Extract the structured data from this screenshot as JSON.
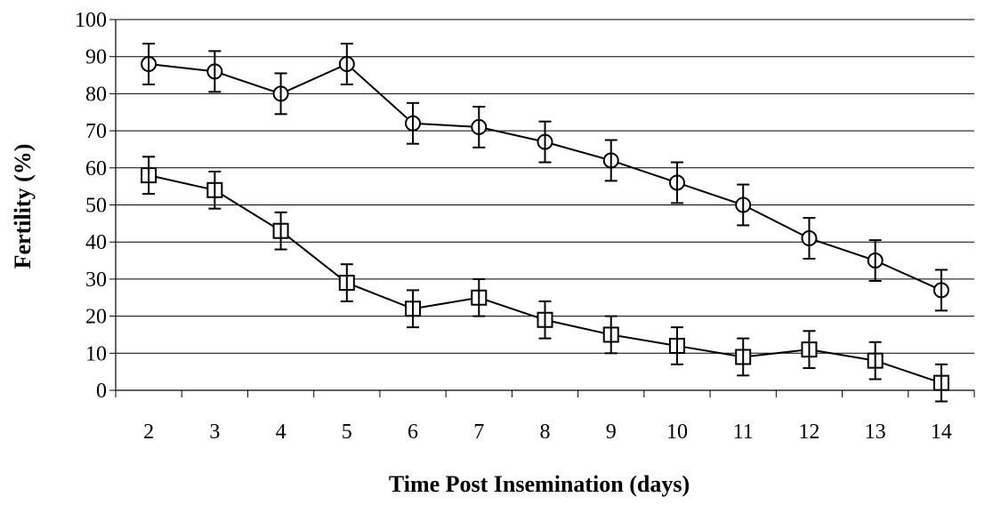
{
  "chart_data": {
    "type": "line",
    "title": "",
    "xlabel": "Time Post Insemination (days)",
    "ylabel": "Fertility (%)",
    "ylim": [
      0,
      100
    ],
    "y_ticks": [
      0,
      10,
      20,
      30,
      40,
      50,
      60,
      70,
      80,
      90,
      100
    ],
    "categories": [
      "2",
      "3",
      "4",
      "5",
      "6",
      "7",
      "8",
      "9",
      "10",
      "11",
      "12",
      "13",
      "14"
    ],
    "grid": "horizontal",
    "legend": "none",
    "series": [
      {
        "marker": "circle",
        "values": [
          88,
          86,
          80,
          88,
          72,
          71,
          67,
          62,
          56,
          50,
          41,
          35,
          27
        ],
        "error": [
          5.5,
          5.5,
          5.5,
          5.5,
          5.5,
          5.5,
          5.5,
          5.5,
          5.5,
          5.5,
          5.5,
          5.5,
          5.5
        ]
      },
      {
        "marker": "square",
        "values": [
          58,
          54,
          43,
          29,
          22,
          25,
          19,
          15,
          12,
          9,
          11,
          8,
          2
        ],
        "error": [
          5,
          5,
          5,
          5,
          5,
          5,
          5,
          5,
          5,
          5,
          5,
          5,
          5
        ]
      }
    ]
  }
}
